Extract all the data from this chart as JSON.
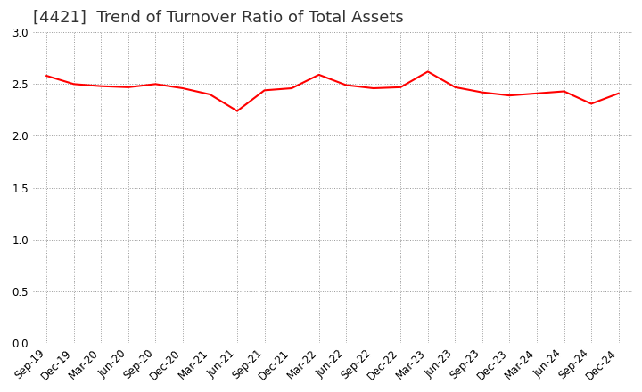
{
  "title": "[4421]  Trend of Turnover Ratio of Total Assets",
  "x_labels": [
    "Sep-19",
    "Dec-19",
    "Mar-20",
    "Jun-20",
    "Sep-20",
    "Dec-20",
    "Mar-21",
    "Jun-21",
    "Sep-21",
    "Dec-21",
    "Mar-22",
    "Jun-22",
    "Sep-22",
    "Dec-22",
    "Mar-23",
    "Jun-23",
    "Sep-23",
    "Dec-23",
    "Mar-24",
    "Jun-24",
    "Sep-24",
    "Dec-24"
  ],
  "y_values": [
    2.58,
    2.5,
    2.48,
    2.47,
    2.5,
    2.46,
    2.4,
    2.24,
    2.44,
    2.46,
    2.59,
    2.49,
    2.46,
    2.47,
    2.62,
    2.47,
    2.42,
    2.39,
    2.41,
    2.43,
    2.31,
    2.41
  ],
  "line_color": "#FF0000",
  "line_width": 1.5,
  "ylim": [
    0.0,
    3.0
  ],
  "yticks": [
    0.0,
    0.5,
    1.0,
    1.5,
    2.0,
    2.5,
    3.0
  ],
  "background_color": "#FFFFFF",
  "grid_color": "#999999",
  "title_fontsize": 13,
  "tick_fontsize": 8.5,
  "title_color": "#333333"
}
